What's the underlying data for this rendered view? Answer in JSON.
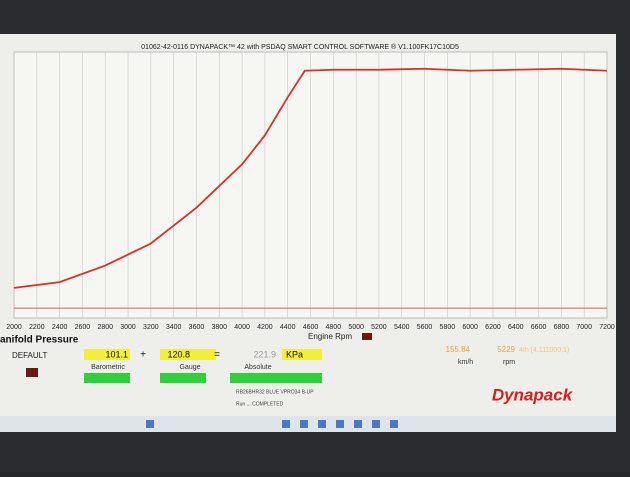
{
  "chart_data": {
    "type": "line",
    "title": "01062-42-0116 DYNAPACK™ 42 with PSDAQ SMART CONTROL SOFTWARE ® V1.100FK17C10D5",
    "x_label": "Engine Rpm",
    "x": [
      2000,
      2400,
      2800,
      3200,
      3600,
      4000,
      4200,
      4400,
      4550,
      4800,
      5200,
      5600,
      6000,
      6400,
      6800,
      7200
    ],
    "series": [
      {
        "color": "#d9302a",
        "values": [
          10.3,
          13.2,
          21.6,
          32.8,
          51,
          73,
          87.7,
          107,
          120.5,
          121,
          121,
          121.5,
          120.5,
          121,
          121.5,
          120.5
        ]
      }
    ],
    "baseline": 0,
    "xlim": [
      2000,
      7200
    ],
    "xticks": [
      2000,
      2200,
      2400,
      2600,
      2800,
      3000,
      3200,
      3400,
      3600,
      3800,
      4000,
      4200,
      4400,
      4600,
      4800,
      5000,
      5200,
      5400,
      5600,
      5800,
      6000,
      6200,
      6400,
      6600,
      6800,
      7000,
      7200
    ],
    "ylim": [
      -5,
      130
    ],
    "grid": true
  },
  "panel": {
    "title": "anifold Pressure",
    "preset": "DEFAULT",
    "barometric": "101.1",
    "plus": "+",
    "gauge": "120.8",
    "equals": "=",
    "absolute": "221.9",
    "unit": "KPa",
    "barometric_label": "Barometric",
    "gauge_label": "Gauge",
    "absolute_label": "Absolute",
    "speed": "155.84",
    "speed_unit": "km/h",
    "rpm": "5229",
    "rpm_unit": "rpm",
    "gear": "4th (4.111000:1)",
    "vehicle": "RB26BHR32 BLUE VPRO34 B-UP",
    "run": "Run ... COMPLETED",
    "logo": "Dynapack"
  }
}
